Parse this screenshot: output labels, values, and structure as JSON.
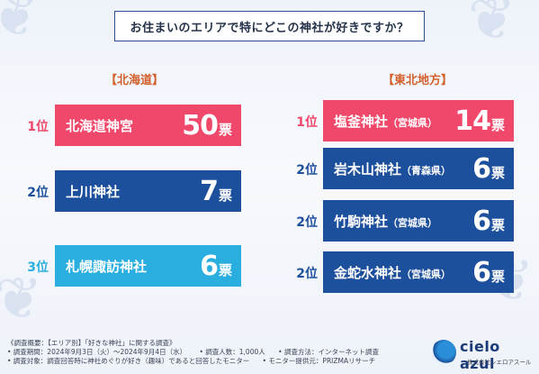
{
  "title": "お住まいのエリアで特にどこの神社が好きですか？",
  "colors": {
    "rank1": "#f0486a",
    "rank2": "#1c4f9c",
    "rank3": "#2aaee0",
    "region": "#d3602c"
  },
  "chart_data": [
    {
      "type": "bar",
      "region": "【北海道】",
      "unit": "票",
      "items": [
        {
          "rank": "1位",
          "name": "北海道神宮",
          "pref": "",
          "value": 50
        },
        {
          "rank": "2位",
          "name": "上川神社",
          "pref": "",
          "value": 7
        },
        {
          "rank": "3位",
          "name": "札幌諏訪神社",
          "pref": "",
          "value": 6
        }
      ]
    },
    {
      "type": "bar",
      "region": "【東北地方】",
      "unit": "票",
      "items": [
        {
          "rank": "1位",
          "name": "塩釜神社",
          "pref": "（宮城県）",
          "value": 14
        },
        {
          "rank": "2位",
          "name": "岩木山神社",
          "pref": "（青森県）",
          "value": 6
        },
        {
          "rank": "2位",
          "name": "竹駒神社",
          "pref": "（宮城県）",
          "value": 6
        },
        {
          "rank": "2位",
          "name": "金蛇水神社",
          "pref": "（宮城県）",
          "value": 6
        }
      ]
    }
  ],
  "footer": {
    "line1": "《調査概要：【エリア別】「好きな神社」に関する調査》",
    "period": "• 調査期間：2024年9月3日（火）～2024年9月4日（水）",
    "respondents": "• 調査人数：1,000人",
    "method": "• 調査方法：インターネット調査",
    "target": "• 調査対象：調査回答時に神社めぐりが好き（趣味）であると回答したモニター",
    "provider": "• モニター提供元：PRIZMAリサーチ"
  },
  "logo": {
    "brand": "cielo azul",
    "sub": "株式会社シエロアスール"
  }
}
